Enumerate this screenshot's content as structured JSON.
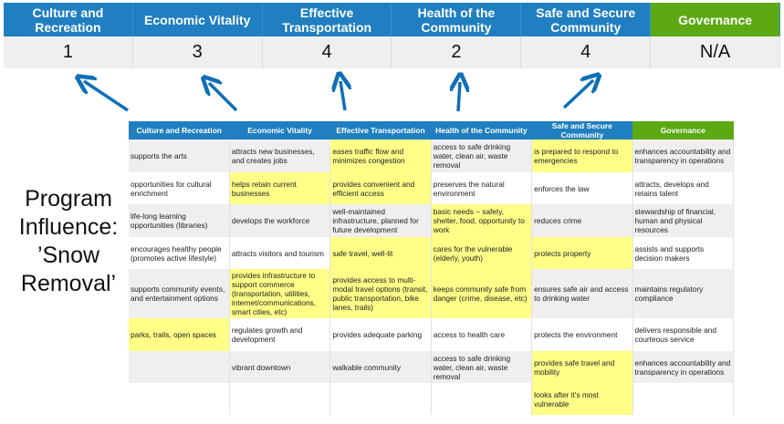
{
  "summary": {
    "columns": [
      {
        "label": "Culture and Recreation",
        "score": "1"
      },
      {
        "label": "Economic Vitality",
        "score": "3"
      },
      {
        "label": "Effective Transportation",
        "score": "4"
      },
      {
        "label": "Health of the Community",
        "score": "2"
      },
      {
        "label": "Safe and Secure Community",
        "score": "4"
      },
      {
        "label": "Governance",
        "score": "N/A"
      }
    ]
  },
  "program_label": "Program Influence: ’Snow Removal’",
  "colors": {
    "header_blue": "#1f7fc1",
    "governance_green": "#5ca913",
    "highlight_yellow": "#ffff88",
    "arrow_blue": "#0f6fb8"
  },
  "matrix": {
    "headers": [
      "Culture and Recreation",
      "Economic Vitality",
      "Effective Transportation",
      "Health of the Community",
      "Safe and Secure Community",
      "Governance"
    ],
    "rows": [
      [
        {
          "t": "supports the arts",
          "h": false
        },
        {
          "t": "attracts new businesses, and creates jobs",
          "h": false
        },
        {
          "t": "eases traffic flow and minimizes congestion",
          "h": true
        },
        {
          "t": "access to safe drinking water, clean air, waste removal",
          "h": false
        },
        {
          "t": "is prepared to respond to emergencies",
          "h": true
        },
        {
          "t": "enhances accountability and transparency in operations",
          "h": false
        }
      ],
      [
        {
          "t": "opportunities for cultural enrichment",
          "h": false
        },
        {
          "t": "helps retain current businesses",
          "h": true
        },
        {
          "t": "provides convenient and efficient access",
          "h": true
        },
        {
          "t": "preserves the natural environment",
          "h": false
        },
        {
          "t": "enforces the law",
          "h": false
        },
        {
          "t": "attracts, develops and retains talent",
          "h": false
        }
      ],
      [
        {
          "t": "life-long learning opportunities (libraries)",
          "h": false
        },
        {
          "t": "develops the workforce",
          "h": false
        },
        {
          "t": "well-maintained infrastructure, planned for future development",
          "h": false
        },
        {
          "t": "basic needs – safety, shelter, food, opportunity to work",
          "h": true
        },
        {
          "t": "reduces crime",
          "h": false
        },
        {
          "t": "stewardship of financial, human and physical resources",
          "h": false
        }
      ],
      [
        {
          "t": "encourages healthy people (promotes active lifestyle)",
          "h": false
        },
        {
          "t": "attracts visitors and tourism",
          "h": false
        },
        {
          "t": "safe travel, well-lit",
          "h": true
        },
        {
          "t": "cares for the vulnerable (elderly, youth)",
          "h": true
        },
        {
          "t": "protects property",
          "h": true
        },
        {
          "t": "assists and supports decision makers",
          "h": false
        }
      ],
      [
        {
          "t": "supports community events, and entertainment options",
          "h": false
        },
        {
          "t": "provides infrastructure to support commerce (transportation, utilities, internet/communications, smart cities, etc)",
          "h": true
        },
        {
          "t": "provides access to multi-modal travel options (transit, public transportation, bike lanes, trails)",
          "h": true
        },
        {
          "t": "keeps community safe from danger (crime, disease, etc)",
          "h": true
        },
        {
          "t": "ensures safe air and access to drinking water",
          "h": false
        },
        {
          "t": "maintains regulatory compliance",
          "h": false
        }
      ],
      [
        {
          "t": "parks, trails, open spaces",
          "h": true
        },
        {
          "t": "regulates growth and development",
          "h": false
        },
        {
          "t": "provides adequate parking",
          "h": false
        },
        {
          "t": "access to health care",
          "h": false
        },
        {
          "t": "protects the environment",
          "h": false
        },
        {
          "t": "delivers responsible and courteous service",
          "h": false
        }
      ],
      [
        {
          "t": "",
          "h": false
        },
        {
          "t": "vibrant downtown",
          "h": false
        },
        {
          "t": "walkable community",
          "h": false
        },
        {
          "t": "access to safe drinking water, clean air, waste removal",
          "h": false
        },
        {
          "t": "provides safe travel and mobility",
          "h": true
        },
        {
          "t": "enhances accountability and transparency in operations",
          "h": false
        }
      ],
      [
        {
          "t": "",
          "h": false
        },
        {
          "t": "",
          "h": false
        },
        {
          "t": "",
          "h": false
        },
        {
          "t": "",
          "h": false
        },
        {
          "t": "looks after it's most vulnerable",
          "h": true
        },
        {
          "t": "",
          "h": false
        }
      ]
    ]
  }
}
